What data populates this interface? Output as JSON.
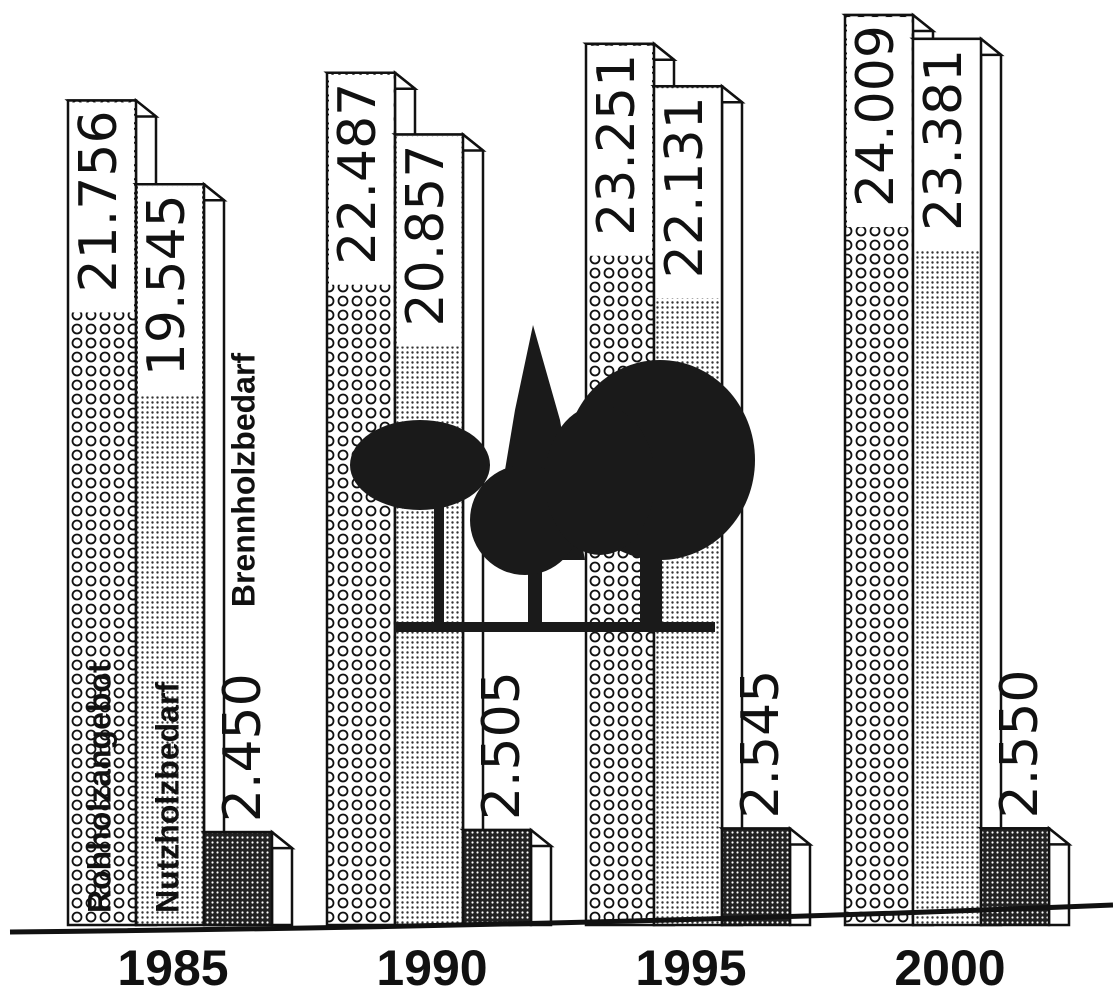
{
  "chart_data": {
    "type": "bar",
    "categories": [
      "1985",
      "1990",
      "1995",
      "2000"
    ],
    "series": [
      {
        "name": "Rohholzangebot",
        "color": "#111111",
        "values": [
          21756,
          22487,
          23251,
          24009
        ],
        "value_labels": [
          "21.756",
          "22.487",
          "23.251",
          "24.009"
        ]
      },
      {
        "name": "Nutzholzbedarf",
        "color": "#111111",
        "values": [
          19545,
          20857,
          22131,
          23381
        ],
        "value_labels": [
          "19.545",
          "20.857",
          "22.131",
          "23.381"
        ]
      },
      {
        "name": "Brennholzbedarf",
        "color": "#111111",
        "values": [
          2450,
          2505,
          2545,
          2550
        ],
        "value_labels": [
          "2.450",
          "2.505",
          "2.545",
          "2.550"
        ]
      }
    ]
  }
}
